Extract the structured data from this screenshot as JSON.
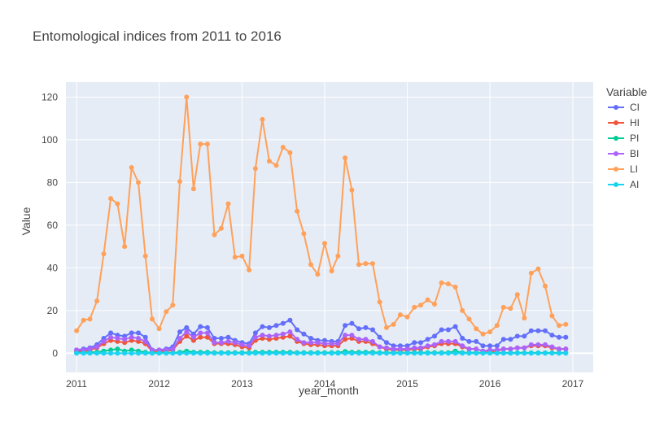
{
  "chart_data": {
    "type": "line",
    "title": "Entomological indices from 2011 to 2016",
    "xlabel": "year_month",
    "ylabel": "Value",
    "x_ticks": [
      "2011",
      "2012",
      "2013",
      "2014",
      "2015",
      "2016",
      "2017"
    ],
    "y_ticks": [
      0,
      20,
      40,
      60,
      80,
      100,
      120
    ],
    "xlim": [
      "2010-11-15",
      "2017-04-01"
    ],
    "ylim": [
      -9,
      127
    ],
    "grid": true,
    "legend": {
      "title": "Variable",
      "position": "right"
    },
    "x_start": "2011-01",
    "x_months": 72,
    "series": [
      {
        "name": "CI",
        "color": "#636efa",
        "values": [
          1.5,
          2,
          2.5,
          4,
          7,
          9.5,
          8.5,
          8,
          9.5,
          9.5,
          7.5,
          1.5,
          1.5,
          2,
          3,
          10,
          12,
          9,
          12.5,
          12,
          7,
          7,
          7.5,
          6,
          5,
          4.5,
          9.5,
          12.5,
          12,
          13,
          14,
          15.5,
          11,
          9,
          7,
          6,
          6,
          5.5,
          5.5,
          13,
          14,
          11.5,
          12,
          11,
          7.5,
          5,
          3.5,
          3.5,
          3.5,
          5,
          5,
          6.5,
          8,
          11,
          11,
          12.5,
          7,
          5.5,
          5.5,
          3.5,
          3.5,
          3.5,
          6.5,
          6.5,
          8,
          8,
          10.5,
          10.5,
          10.5,
          8.5,
          7.5,
          7.5
        ]
      },
      {
        "name": "HI",
        "color": "#ef553b",
        "values": [
          1,
          1,
          1.5,
          2.5,
          4.5,
          6,
          5.5,
          5,
          6,
          5.5,
          4.5,
          1,
          1,
          1,
          1.5,
          5.5,
          8,
          6,
          7.5,
          7.5,
          4.5,
          4.5,
          4.5,
          4,
          3,
          2.5,
          6,
          7,
          6.5,
          7,
          7.5,
          8,
          5.5,
          4.5,
          4,
          4,
          3.5,
          3.5,
          3.5,
          6.5,
          7,
          5.5,
          5.5,
          4.5,
          3,
          2,
          1.5,
          1.5,
          1.5,
          2,
          2,
          3,
          3.5,
          4.5,
          4.5,
          4.5,
          3,
          2,
          2,
          1,
          1,
          1,
          2,
          2,
          2.5,
          2.5,
          3.5,
          3.5,
          3.5,
          2.5,
          2,
          2
        ]
      },
      {
        "name": "PI",
        "color": "#00cc96",
        "values": [
          0.3,
          0.3,
          0.5,
          0.5,
          1,
          1.5,
          2,
          1,
          1.5,
          1,
          0.5,
          0.2,
          0.2,
          0.2,
          0.2,
          0.5,
          1,
          0.5,
          0.5,
          0.5,
          0.3,
          0.3,
          0.3,
          0.3,
          0.3,
          0.3,
          0.5,
          0.5,
          0.5,
          0.5,
          0.5,
          0.5,
          0.3,
          0.3,
          0.3,
          0.3,
          0.3,
          0.3,
          0.3,
          0.8,
          0.5,
          0.5,
          0.5,
          0.5,
          0.3,
          0.3,
          0.3,
          0.3,
          0.3,
          0.3,
          0.3,
          0.3,
          0.3,
          0.3,
          0.3,
          1,
          0.3,
          0.3,
          0.3,
          0.2,
          0.2,
          0.2,
          0.2,
          0.2,
          0.2,
          0.2,
          0.2,
          0.2,
          0.2,
          0.2,
          0.2,
          0.2
        ]
      },
      {
        "name": "BI",
        "color": "#ab63fa",
        "values": [
          1.5,
          1.5,
          2,
          3,
          5.5,
          7.5,
          7,
          6.5,
          7.5,
          7,
          5.5,
          1.5,
          1.5,
          1.5,
          2,
          7,
          10,
          7.5,
          9.5,
          9.5,
          5,
          5,
          5.5,
          5,
          4,
          3.5,
          7.5,
          8.5,
          8,
          8.5,
          9,
          10,
          6.5,
          5,
          5,
          5,
          4.5,
          4.5,
          4.5,
          8.5,
          8.5,
          6.5,
          6.5,
          5.5,
          3,
          2.5,
          2,
          2,
          2,
          2.5,
          2.5,
          3.5,
          4,
          5.5,
          5.5,
          5.5,
          3.5,
          2,
          2,
          1,
          1.5,
          1.5,
          2,
          2,
          2.5,
          2.5,
          4,
          4,
          4,
          3,
          2,
          2
        ]
      },
      {
        "name": "LI",
        "color": "#ffa15a",
        "values": [
          10.5,
          15.5,
          16,
          24.5,
          46.5,
          72.5,
          70,
          50,
          87,
          80,
          45.5,
          16,
          11.5,
          19.5,
          22.5,
          80.5,
          120,
          77,
          98,
          98,
          55.5,
          58.5,
          70,
          45,
          45.5,
          39,
          86.5,
          109.5,
          90,
          88,
          96.5,
          94,
          66.5,
          56,
          41.5,
          37,
          51.5,
          38.5,
          45.5,
          91.5,
          76.5,
          41.5,
          42,
          42,
          24,
          12,
          13.5,
          18,
          17,
          21.5,
          22.5,
          25,
          23,
          33,
          32.5,
          31,
          20,
          16,
          11.5,
          9,
          10,
          13,
          21.5,
          21,
          27.5,
          16.5,
          37.5,
          39.5,
          31.5,
          17.5,
          13,
          13.5
        ]
      },
      {
        "name": "AI",
        "color": "#19d3f3",
        "values": [
          0,
          0,
          0,
          0,
          0,
          0,
          0,
          0,
          0,
          0,
          0,
          0,
          0,
          0,
          0,
          0,
          0,
          0,
          0,
          0,
          0,
          0,
          0,
          0,
          0,
          0,
          0,
          0,
          0,
          0,
          0,
          0,
          0,
          0,
          0,
          0,
          0,
          0,
          0,
          0,
          0,
          0,
          0,
          0,
          0,
          0,
          0,
          0,
          0,
          0,
          0,
          0,
          0,
          0,
          0,
          0,
          0,
          0,
          0,
          0,
          0,
          0,
          0,
          0,
          0,
          0,
          0,
          0,
          0,
          0,
          0,
          0
        ]
      }
    ]
  }
}
